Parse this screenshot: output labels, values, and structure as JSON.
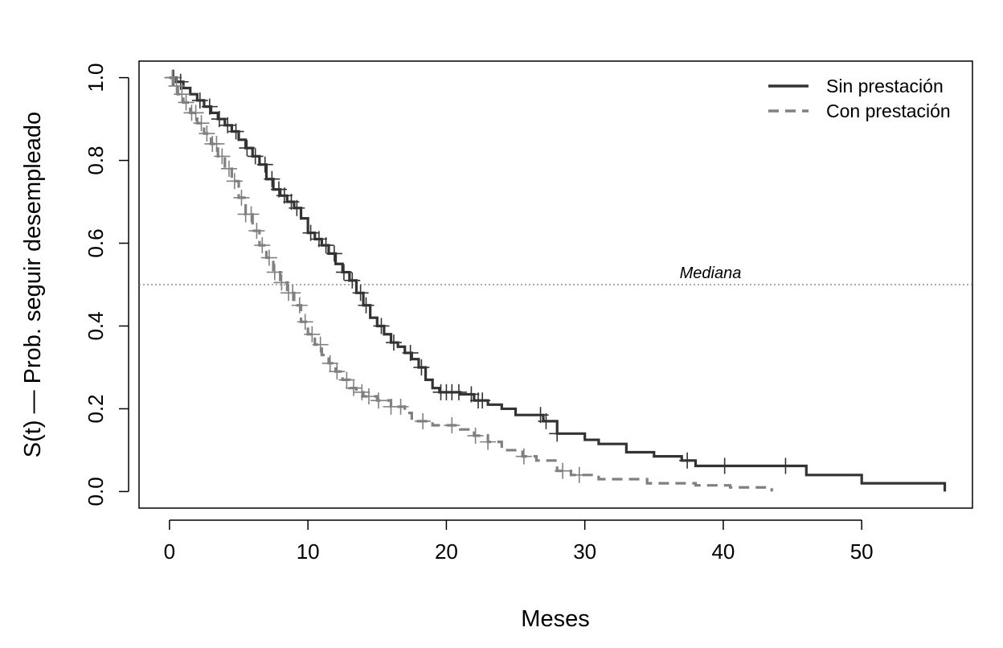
{
  "chart_data": {
    "type": "line",
    "subtype": "kaplan-meier step",
    "xlabel": "Meses",
    "ylabel": "S(t) — Prob. seguir desempleado",
    "xlim": [
      -2.2,
      58
    ],
    "ylim": [
      -0.04,
      1.04
    ],
    "xticks": [
      0,
      10,
      20,
      30,
      40,
      50
    ],
    "yticks": [
      0.0,
      0.2,
      0.4,
      0.6,
      0.8,
      1.0
    ],
    "xtick_labels": [
      "0",
      "10",
      "20",
      "30",
      "40",
      "50"
    ],
    "ytick_labels": [
      "0.0",
      "0.2",
      "0.4",
      "0.6",
      "0.8",
      "1.0"
    ],
    "reference_line": {
      "y": 0.5,
      "label": "Mediana",
      "style": "dotted"
    },
    "legend": {
      "position": "top-right",
      "entries": [
        "Sin prestación",
        "Con prestación"
      ]
    },
    "series": [
      {
        "name": "Sin prestación",
        "color": "#333333",
        "dash": "solid",
        "points": [
          [
            0,
            1.0
          ],
          [
            0.5,
            0.99
          ],
          [
            1,
            0.975
          ],
          [
            1.5,
            0.96
          ],
          [
            2,
            0.945
          ],
          [
            2.5,
            0.93
          ],
          [
            3,
            0.915
          ],
          [
            3.5,
            0.9
          ],
          [
            4,
            0.885
          ],
          [
            4.5,
            0.87
          ],
          [
            5,
            0.85
          ],
          [
            5.5,
            0.83
          ],
          [
            6,
            0.81
          ],
          [
            6.5,
            0.79
          ],
          [
            7,
            0.755
          ],
          [
            7.5,
            0.73
          ],
          [
            8,
            0.715
          ],
          [
            8.5,
            0.7
          ],
          [
            9,
            0.685
          ],
          [
            9.5,
            0.66
          ],
          [
            10,
            0.625
          ],
          [
            10.5,
            0.61
          ],
          [
            11,
            0.595
          ],
          [
            11.5,
            0.575
          ],
          [
            12,
            0.55
          ],
          [
            12.5,
            0.53
          ],
          [
            13,
            0.51
          ],
          [
            13.5,
            0.48
          ],
          [
            14,
            0.45
          ],
          [
            14.5,
            0.42
          ],
          [
            15,
            0.4
          ],
          [
            15.5,
            0.38
          ],
          [
            16,
            0.36
          ],
          [
            16.5,
            0.35
          ],
          [
            17,
            0.335
          ],
          [
            17.5,
            0.32
          ],
          [
            18,
            0.3
          ],
          [
            18.5,
            0.27
          ],
          [
            19,
            0.25
          ],
          [
            19.5,
            0.24
          ],
          [
            21,
            0.235
          ],
          [
            22,
            0.22
          ],
          [
            23,
            0.21
          ],
          [
            24,
            0.2
          ],
          [
            25,
            0.185
          ],
          [
            27,
            0.17
          ],
          [
            28,
            0.14
          ],
          [
            30,
            0.125
          ],
          [
            31,
            0.115
          ],
          [
            33,
            0.095
          ],
          [
            35,
            0.085
          ],
          [
            37,
            0.075
          ],
          [
            38,
            0.062
          ],
          [
            40,
            0.062
          ],
          [
            46,
            0.04
          ],
          [
            50,
            0.02
          ],
          [
            56,
            0.0
          ]
        ],
        "censored": [
          0.3,
          0.8,
          2.2,
          2.9,
          3.6,
          4.2,
          4.8,
          5.6,
          6.2,
          6.9,
          7.4,
          7.9,
          8.3,
          8.8,
          9.2,
          10.2,
          10.8,
          11.3,
          11.9,
          12.6,
          13.2,
          13.8,
          14.2,
          15.3,
          16.2,
          17.4,
          18.2,
          19.6,
          20.0,
          20.4,
          20.9,
          21.8,
          22.3,
          22.6,
          26.8,
          27.2,
          28.0,
          37.4,
          40.1,
          44.5
        ]
      },
      {
        "name": "Con prestación",
        "color": "#808080",
        "dash": "dashed",
        "points": [
          [
            0,
            1.0
          ],
          [
            0.3,
            0.98
          ],
          [
            0.6,
            0.96
          ],
          [
            1,
            0.94
          ],
          [
            1.5,
            0.915
          ],
          [
            2,
            0.89
          ],
          [
            2.5,
            0.865
          ],
          [
            3,
            0.84
          ],
          [
            3.5,
            0.81
          ],
          [
            4,
            0.78
          ],
          [
            4.5,
            0.75
          ],
          [
            5,
            0.71
          ],
          [
            5.5,
            0.67
          ],
          [
            6,
            0.63
          ],
          [
            6.5,
            0.595
          ],
          [
            7,
            0.565
          ],
          [
            7.5,
            0.53
          ],
          [
            8,
            0.505
          ],
          [
            8.5,
            0.48
          ],
          [
            9,
            0.45
          ],
          [
            9.5,
            0.41
          ],
          [
            10,
            0.38
          ],
          [
            10.5,
            0.355
          ],
          [
            11,
            0.33
          ],
          [
            11.5,
            0.31
          ],
          [
            12,
            0.29
          ],
          [
            12.5,
            0.27
          ],
          [
            13,
            0.25
          ],
          [
            13.5,
            0.24
          ],
          [
            14,
            0.23
          ],
          [
            15,
            0.22
          ],
          [
            16,
            0.205
          ],
          [
            17,
            0.19
          ],
          [
            17.5,
            0.17
          ],
          [
            19,
            0.16
          ],
          [
            21,
            0.15
          ],
          [
            22,
            0.135
          ],
          [
            23,
            0.12
          ],
          [
            24,
            0.1
          ],
          [
            25.5,
            0.085
          ],
          [
            26.5,
            0.075
          ],
          [
            28,
            0.05
          ],
          [
            29,
            0.04
          ],
          [
            31,
            0.03
          ],
          [
            34.5,
            0.02
          ],
          [
            38,
            0.015
          ],
          [
            40.5,
            0.01
          ],
          [
            43.5,
            0.0
          ]
        ],
        "censored": [
          0.2,
          0.5,
          0.9,
          1.2,
          1.6,
          1.9,
          2.3,
          2.7,
          3.1,
          3.4,
          3.8,
          4.3,
          4.7,
          5.2,
          5.5,
          5.9,
          6.3,
          6.7,
          7.2,
          7.6,
          8.1,
          8.6,
          8.9,
          9.4,
          9.8,
          10.3,
          10.9,
          11.6,
          12.1,
          12.8,
          13.3,
          13.9,
          14.4,
          15.1,
          16.0,
          16.7,
          18.3,
          20.4,
          22.1,
          23.0,
          25.6,
          28.4,
          29.6
        ]
      }
    ]
  }
}
